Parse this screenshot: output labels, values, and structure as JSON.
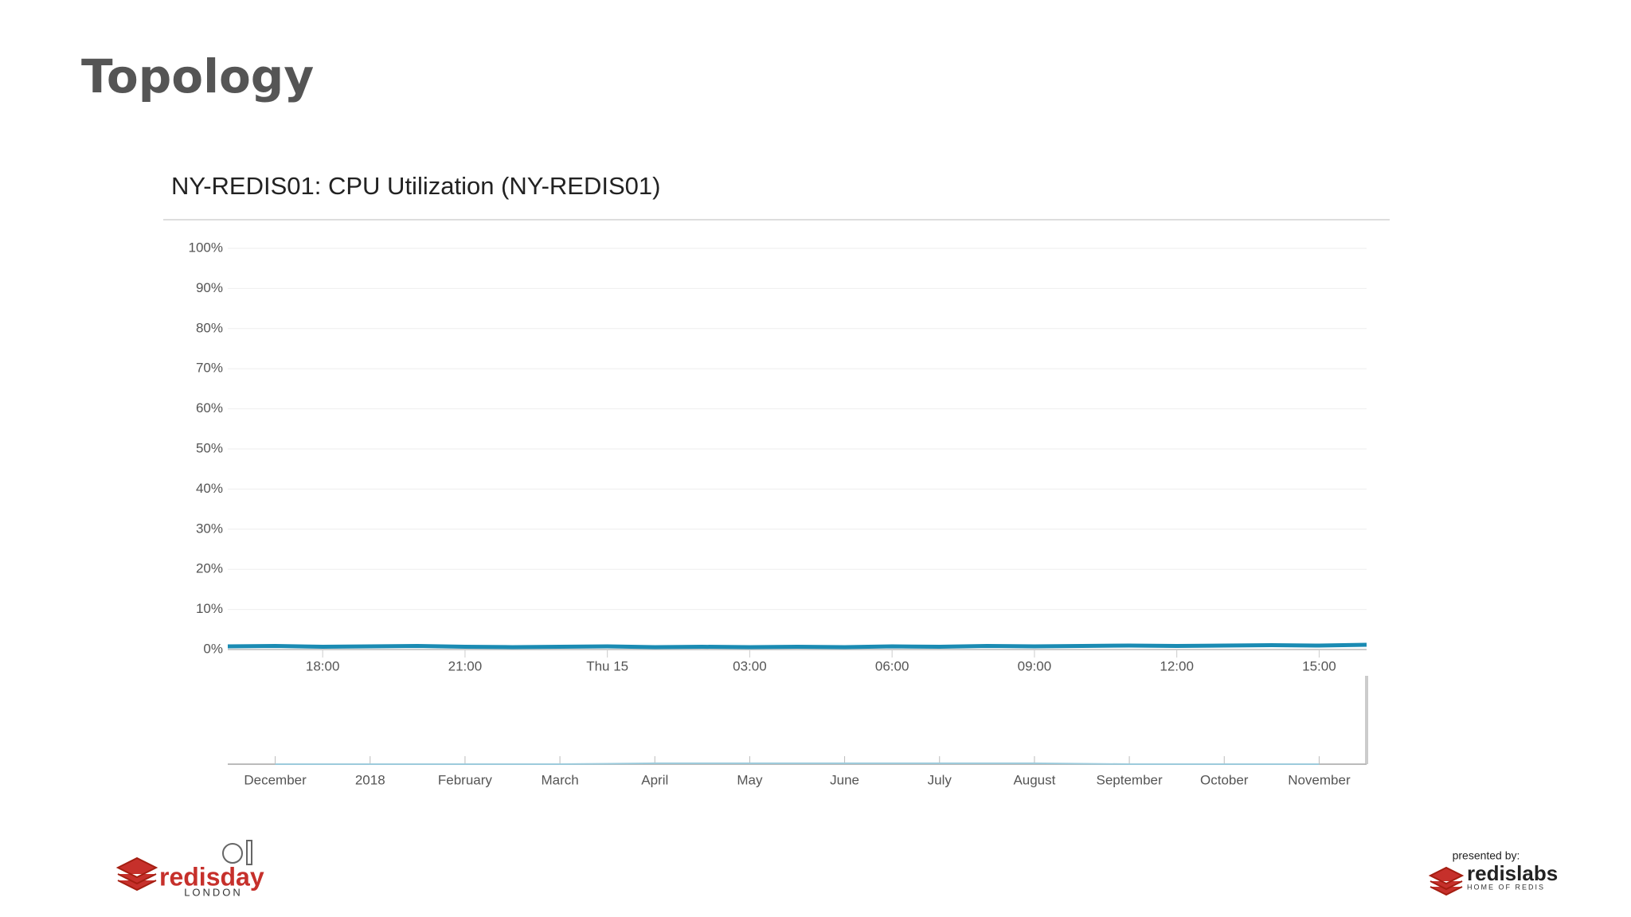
{
  "slide_title": "Topology",
  "chart_data": [
    {
      "type": "line",
      "title": "NY-REDIS01: CPU Utilization (NY-REDIS01)",
      "color": "#1a8bb3",
      "grid": true,
      "categories": [
        null,
        null,
        "18:00",
        null,
        null,
        "21:00",
        null,
        null,
        "Thu 15",
        null,
        null,
        "03:00",
        null,
        null,
        "06:00",
        null,
        null,
        "09:00",
        null,
        null,
        "12:00",
        null,
        null,
        "15:00",
        null
      ],
      "values": [
        0.8,
        0.9,
        0.7,
        0.8,
        0.9,
        0.7,
        0.6,
        0.7,
        0.8,
        0.6,
        0.7,
        0.6,
        0.7,
        0.6,
        0.8,
        0.7,
        0.9,
        0.8,
        0.9,
        1.0,
        0.9,
        1.0,
        1.1,
        1.0,
        1.2
      ],
      "ylim": [
        0,
        100
      ],
      "yticks": [
        {
          "value": 0,
          "label": "0%"
        },
        {
          "value": 10,
          "label": "10%"
        },
        {
          "value": 20,
          "label": "20%"
        },
        {
          "value": 30,
          "label": "30%"
        },
        {
          "value": 40,
          "label": "40%"
        },
        {
          "value": 50,
          "label": "50%"
        },
        {
          "value": 60,
          "label": "60%"
        },
        {
          "value": 70,
          "label": "70%"
        },
        {
          "value": 80,
          "label": "80%"
        },
        {
          "value": 90,
          "label": "90%"
        },
        {
          "value": 100,
          "label": "100%"
        }
      ]
    },
    {
      "type": "navigator",
      "color": "#9ccbdc",
      "categories": [
        "December",
        "2018",
        "February",
        "March",
        "April",
        "May",
        "June",
        "July",
        "August",
        "September",
        "October",
        "November"
      ],
      "values": [
        0,
        0,
        0,
        0,
        1,
        1,
        1,
        1,
        1,
        0,
        0,
        0
      ],
      "ylim": [
        0,
        100
      ]
    }
  ],
  "logos": {
    "event": "redisday",
    "city": "LONDON",
    "presented_by": "presented by:",
    "sponsor": "redislabs",
    "sponsor_tagline": "HOME OF REDIS"
  }
}
